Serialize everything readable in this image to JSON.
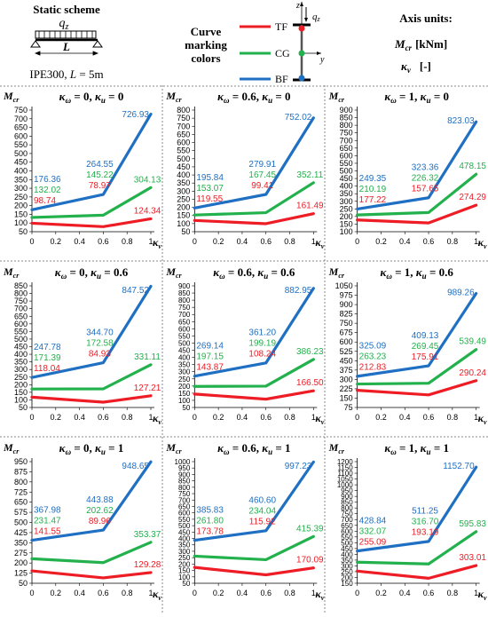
{
  "legend": {
    "scheme_title": "Static scheme",
    "load_label": "q",
    "load_sub": "z",
    "span_label": "L",
    "section_label": "IPE300, ",
    "length_var": "L",
    "length_value": " = 5m",
    "marking_title_1": "Curve",
    "marking_title_2": "marking",
    "marking_title_3": "colors",
    "curves": [
      {
        "label": "TF",
        "color": "#ee1c25"
      },
      {
        "label": "CG",
        "color": "#22b14c"
      },
      {
        "label": "BF",
        "color": "#1f6fc3"
      }
    ],
    "section_axis_z": "z",
    "section_axis_y": "y",
    "section_load": "q",
    "section_load_sub": "z",
    "units_title": "Axis units:",
    "units_mcr_sym": "M",
    "units_mcr_sub": "cr",
    "units_mcr_unit": "[kNm]",
    "units_kv_sym": "κ",
    "units_kv_sub": "ν",
    "units_kv_unit": "[-]"
  },
  "axes": {
    "y_sym": "M",
    "y_sub": "cr",
    "x_sym": "κ",
    "x_sub": "ν",
    "x_ticks": [
      "0",
      "0.2",
      "0.4",
      "0.6",
      "0.8",
      "1"
    ]
  },
  "colors": {
    "TF": "#ee1c25",
    "CG": "#22b14c",
    "BF": "#1f6fc3"
  },
  "chart_data": [
    {
      "type": "line",
      "kw": "0",
      "ku": "0",
      "ylim": [
        50,
        750
      ],
      "yticks": [
        50,
        100,
        150,
        200,
        250,
        300,
        350,
        400,
        450,
        500,
        550,
        600,
        650,
        700,
        750
      ],
      "x": [
        0,
        0.6,
        1
      ],
      "series": [
        {
          "name": "TF",
          "values": [
            98.74,
            78.97,
            124.34
          ]
        },
        {
          "name": "CG",
          "values": [
            132.02,
            145.22,
            304.13
          ]
        },
        {
          "name": "BF",
          "values": [
            176.36,
            264.55,
            726.93
          ]
        }
      ]
    },
    {
      "type": "line",
      "kw": "0.6",
      "ku": "0",
      "ylim": [
        50,
        800
      ],
      "yticks": [
        50,
        100,
        150,
        200,
        250,
        300,
        350,
        400,
        450,
        500,
        550,
        600,
        650,
        700,
        750,
        800
      ],
      "x": [
        0,
        0.6,
        1
      ],
      "series": [
        {
          "name": "TF",
          "values": [
            119.55,
            99.41,
            161.49
          ]
        },
        {
          "name": "CG",
          "values": [
            153.07,
            167.45,
            352.11
          ]
        },
        {
          "name": "BF",
          "values": [
            195.84,
            279.91,
            752.02
          ]
        }
      ]
    },
    {
      "type": "line",
      "kw": "1",
      "ku": "0",
      "ylim": [
        100,
        900
      ],
      "yticks": [
        100,
        150,
        200,
        250,
        300,
        350,
        400,
        450,
        500,
        550,
        600,
        650,
        700,
        750,
        800,
        850,
        900
      ],
      "x": [
        0,
        0.6,
        1
      ],
      "series": [
        {
          "name": "TF",
          "values": [
            177.22,
            157.65,
            274.29
          ]
        },
        {
          "name": "CG",
          "values": [
            210.19,
            226.32,
            478.15
          ]
        },
        {
          "name": "BF",
          "values": [
            249.35,
            323.36,
            823.03
          ]
        }
      ]
    },
    {
      "type": "line",
      "kw": "0",
      "ku": "0.6",
      "ylim": [
        50,
        850
      ],
      "yticks": [
        50,
        100,
        150,
        200,
        250,
        300,
        350,
        400,
        450,
        500,
        550,
        600,
        650,
        700,
        750,
        800,
        850
      ],
      "x": [
        0,
        0.6,
        1
      ],
      "series": [
        {
          "name": "TF",
          "values": [
            118.04,
            84.93,
            127.21
          ]
        },
        {
          "name": "CG",
          "values": [
            171.39,
            172.58,
            331.11
          ]
        },
        {
          "name": "BF",
          "values": [
            247.78,
            344.7,
            847.52
          ]
        }
      ]
    },
    {
      "type": "line",
      "kw": "0.6",
      "ku": "0.6",
      "ylim": [
        50,
        900
      ],
      "yticks": [
        50,
        100,
        150,
        200,
        250,
        300,
        350,
        400,
        450,
        500,
        550,
        600,
        650,
        700,
        750,
        800,
        850,
        900
      ],
      "x": [
        0,
        0.6,
        1
      ],
      "series": [
        {
          "name": "TF",
          "values": [
            143.87,
            108.24,
            166.5
          ]
        },
        {
          "name": "CG",
          "values": [
            197.15,
            199.19,
            386.23
          ]
        },
        {
          "name": "BF",
          "values": [
            269.14,
            361.2,
            882.95
          ]
        }
      ]
    },
    {
      "type": "line",
      "kw": "1",
      "ku": "0.6",
      "ylim": [
        75,
        1050
      ],
      "yticks": [
        75,
        150,
        225,
        300,
        375,
        450,
        525,
        600,
        675,
        750,
        825,
        900,
        975,
        1050
      ],
      "x": [
        0,
        0.6,
        1
      ],
      "series": [
        {
          "name": "TF",
          "values": [
            212.83,
            175.91,
            290.24
          ]
        },
        {
          "name": "CG",
          "values": [
            263.23,
            269.45,
            539.49
          ]
        },
        {
          "name": "BF",
          "values": [
            325.09,
            409.13,
            989.26
          ]
        }
      ]
    },
    {
      "type": "line",
      "kw": "0",
      "ku": "1",
      "ylim": [
        50,
        950
      ],
      "yticks": [
        50,
        125,
        200,
        275,
        350,
        425,
        500,
        575,
        650,
        725,
        800,
        875,
        950
      ],
      "x": [
        0,
        0.6,
        1
      ],
      "series": [
        {
          "name": "TF",
          "values": [
            141.55,
            89.96,
            129.28
          ]
        },
        {
          "name": "CG",
          "values": [
            231.47,
            202.62,
            353.37
          ]
        },
        {
          "name": "BF",
          "values": [
            367.98,
            443.88,
            948.65
          ]
        }
      ]
    },
    {
      "type": "line",
      "kw": "0.6",
      "ku": "1",
      "ylim": [
        50,
        1000
      ],
      "yticks": [
        50,
        100,
        150,
        200,
        250,
        300,
        350,
        400,
        450,
        500,
        550,
        600,
        650,
        700,
        750,
        800,
        850,
        900,
        950,
        1000
      ],
      "x": [
        0,
        0.6,
        1
      ],
      "series": [
        {
          "name": "TF",
          "values": [
            173.78,
            115.92,
            170.09
          ]
        },
        {
          "name": "CG",
          "values": [
            261.8,
            234.04,
            415.39
          ]
        },
        {
          "name": "BF",
          "values": [
            385.83,
            460.6,
            997.23
          ]
        }
      ]
    },
    {
      "type": "line",
      "kw": "1",
      "ku": "1",
      "ylim": [
        150,
        1200
      ],
      "yticks": [
        150,
        200,
        250,
        300,
        350,
        400,
        450,
        500,
        550,
        600,
        650,
        700,
        750,
        800,
        850,
        900,
        950,
        1000,
        1050,
        1100,
        1150,
        1200
      ],
      "x": [
        0,
        0.6,
        1
      ],
      "series": [
        {
          "name": "TF",
          "values": [
            255.09,
            193.19,
            303.01
          ]
        },
        {
          "name": "CG",
          "values": [
            332.07,
            316.7,
            595.83
          ]
        },
        {
          "name": "BF",
          "values": [
            428.84,
            511.25,
            1152.7
          ]
        }
      ]
    }
  ]
}
